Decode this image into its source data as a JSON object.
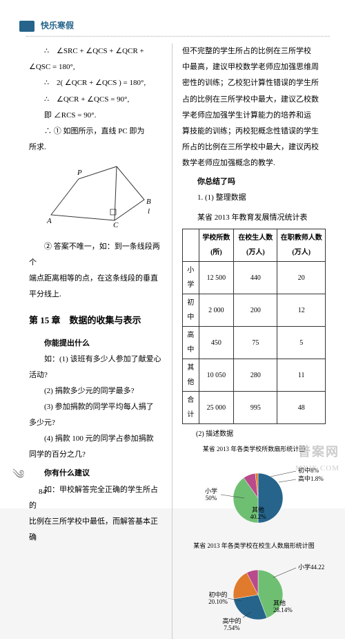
{
  "header": {
    "title": "快乐寒假"
  },
  "left": {
    "eq1_a": "∴　∠SRC + ∠QCS + ∠QCR +",
    "eq1_b": "∠QSC = 180°,",
    "eq2": "∴　2( ∠QCR + ∠QCS ) = 180°,",
    "eq3": "∴　∠QCR + ∠QCS = 90°,",
    "eq4": "即 ∠RCS = 90°.",
    "res1_a": "∴ ① 如图所示，直线 PC 即为",
    "res1_b": "所求.",
    "fig": {
      "P": "P",
      "A": "A",
      "C": "C",
      "B": "B",
      "l": "l"
    },
    "note_a": "② 答案不唯一，如：到一条线段两个",
    "note_b": "端点距离相等的点，在这条线段的垂直",
    "note_c": "平分线上.",
    "chapter": "第 15 章　数据的收集与表示",
    "ask": "你能提出什么",
    "q1_a": "如：(1) 该班有多少人参加了献爱心",
    "q1_b": "活动?",
    "q2": "(2) 捐款多少元的同学最多?",
    "q3_a": "(3) 参加捐款的同学平均每人捐了",
    "q3_b": "多少元?",
    "q4_a": "(4) 捐款 100 元的同学占参加捐款",
    "q4_b": "同学的百分之几?",
    "advice": "你有什么建议",
    "adv_a": "如：甲校解答完全正确的学生所占的",
    "adv_b": "比例在三所学校中最低，而解答基本正确"
  },
  "right": {
    "p1_a": "但不完整的学生所占的比例在三所学校",
    "p1_b": "中最高，建议甲校数学老师应加强思维周",
    "p1_c": "密性的训练；乙校犯计算性错误的学生所",
    "p1_d": "占的比例在三所学校中最大，建议乙校数",
    "p1_e": "学老师应加强学生计算能力的培养和运",
    "p1_f": "算技能的训练；丙校犯概念性错误的学生",
    "p1_g": "所占的比例在三所学校中最大，建议丙校",
    "p1_h": "数学老师应加强概念的教学.",
    "sum": "你总结了吗",
    "item1": "1. (1) 整理数据",
    "tbl_caption": "某省 2013 年教育发展情况统计表",
    "table": {
      "head": [
        "",
        "学校所数(所)",
        "在校生人数(万人)",
        "在职教师人数(万人)"
      ],
      "rows": [
        [
          "小学",
          "12 500",
          "440",
          "20"
        ],
        [
          "初中",
          "2 000",
          "200",
          "12"
        ],
        [
          "高中",
          "450",
          "75",
          "5"
        ],
        [
          "其他",
          "10 050",
          "280",
          "11"
        ],
        [
          "合计",
          "25 000",
          "995",
          "48"
        ]
      ]
    },
    "item2": "(2) 描述数据",
    "pie1_caption": "某省 2013 年各类学校所数扇形统计图",
    "pie1": {
      "slices": [
        {
          "label": "小学",
          "pct": "50%",
          "value": 50,
          "color": "#26648b"
        },
        {
          "label": "其他",
          "pct": "40.2%",
          "value": 40.2,
          "color": "#6fbf73"
        },
        {
          "label": "初中",
          "pct": "8%",
          "value": 8,
          "color": "#b94a8b"
        },
        {
          "label": "高中",
          "pct": "1.8%",
          "value": 1.8,
          "color": "#e07b2e"
        }
      ],
      "labels": {
        "chu": "初中8%",
        "gao": "高中1.8%",
        "xiao": "小学\n50%",
        "qita": "其他\n40.2%"
      }
    },
    "pie2_caption": "某省 2013 年各类学校在校生人数扇形统计图",
    "pie2": {
      "slices": [
        {
          "label": "小学",
          "pct": "44.22%",
          "value": 44.22,
          "color": "#6fbf73"
        },
        {
          "label": "其他",
          "pct": "28.14%",
          "value": 28.14,
          "color": "#26648b"
        },
        {
          "label": "初中",
          "pct": "20.10%",
          "value": 20.1,
          "color": "#e07b2e"
        },
        {
          "label": "高中",
          "pct": "7.54%",
          "value": 7.54,
          "color": "#b94a8b"
        }
      ],
      "labels": {
        "xiao": "小学44.22%",
        "qita": "其他\n28.14%",
        "chu": "初中的\n20.10%",
        "gao": "高中的\n7.54%"
      }
    }
  },
  "pagenum": "84",
  "wm": {
    "a": "普案网",
    "b": "MXIE.COM"
  }
}
